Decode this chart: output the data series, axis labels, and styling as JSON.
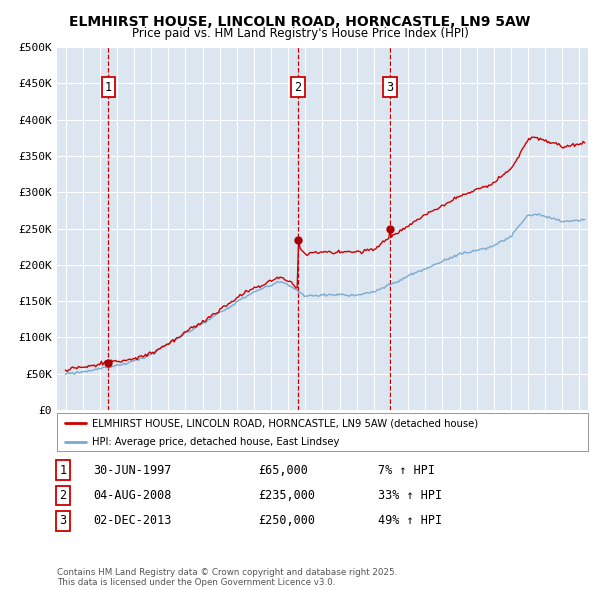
{
  "title": "ELMHIRST HOUSE, LINCOLN ROAD, HORNCASTLE, LN9 5AW",
  "subtitle": "Price paid vs. HM Land Registry's House Price Index (HPI)",
  "legend_house": "ELMHIRST HOUSE, LINCOLN ROAD, HORNCASTLE, LN9 5AW (detached house)",
  "legend_hpi": "HPI: Average price, detached house, East Lindsey",
  "footer": "Contains HM Land Registry data © Crown copyright and database right 2025.\nThis data is licensed under the Open Government Licence v3.0.",
  "sales": [
    {
      "num": 1,
      "date": "30-JUN-1997",
      "price": 65000,
      "hpi_pct": "7%",
      "x": 1997.5
    },
    {
      "num": 2,
      "date": "04-AUG-2008",
      "price": 235000,
      "hpi_pct": "33%",
      "x": 2008.58
    },
    {
      "num": 3,
      "date": "02-DEC-2013",
      "price": 250000,
      "hpi_pct": "49%",
      "x": 2013.92
    }
  ],
  "ylim": [
    0,
    500000
  ],
  "yticks": [
    0,
    50000,
    100000,
    150000,
    200000,
    250000,
    300000,
    350000,
    400000,
    450000,
    500000
  ],
  "ytick_labels": [
    "£0",
    "£50K",
    "£100K",
    "£150K",
    "£200K",
    "£250K",
    "£300K",
    "£350K",
    "£400K",
    "£450K",
    "£500K"
  ],
  "xlim_start": 1994.5,
  "xlim_end": 2025.5,
  "house_color": "#cc0000",
  "hpi_color": "#7aaad0",
  "bg_color": "#dce6f1",
  "grid_color": "#ffffff",
  "sale_marker_color": "#aa0000",
  "dashed_line_color": "#cc0000",
  "number_box_color": "#cc0000"
}
